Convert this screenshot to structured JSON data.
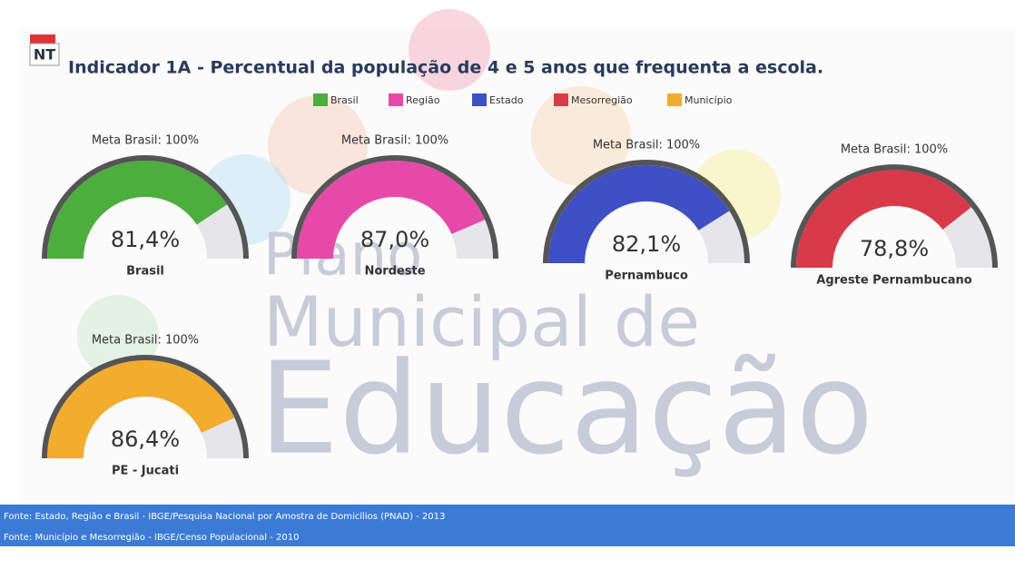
{
  "header": {
    "badge": "NT",
    "title": "Indicador 1A - Percentual da população de 4 e 5 anos que frequenta a escola."
  },
  "watermark": [
    "Plano",
    "Municipal de",
    "Educação"
  ],
  "chart_data": [
    {
      "type": "gauge",
      "title": "Meta Brasil: 100%",
      "categories": [
        "Brasil"
      ],
      "ylim": [
        0,
        100
      ],
      "series": [
        {
          "name": "Brasil",
          "color": "#4cae3c",
          "values": [
            81.4
          ],
          "value_labels": [
            "81,4%"
          ]
        }
      ]
    },
    {
      "type": "gauge",
      "title": "Meta Brasil: 100%",
      "categories": [
        "Nordeste"
      ],
      "ylim": [
        0,
        100
      ],
      "series": [
        {
          "name": "Região",
          "color": "#e64aa8",
          "values": [
            87.0
          ],
          "value_labels": [
            "87,0%"
          ]
        }
      ]
    },
    {
      "type": "gauge",
      "title": "Meta Brasil: 100%",
      "categories": [
        "Pernambuco"
      ],
      "ylim": [
        0,
        100
      ],
      "series": [
        {
          "name": "Estado",
          "color": "#3f4fc4",
          "values": [
            82.1
          ],
          "value_labels": [
            "82,1%"
          ]
        }
      ]
    },
    {
      "type": "gauge",
      "title": "Meta Brasil: 100%",
      "categories": [
        "Agreste Pernambucano"
      ],
      "ylim": [
        0,
        100
      ],
      "series": [
        {
          "name": "Mesorregião",
          "color": "#d93a4a",
          "values": [
            78.8
          ],
          "value_labels": [
            "78,8%"
          ]
        }
      ]
    },
    {
      "type": "gauge",
      "title": "Meta Brasil: 100%",
      "categories": [
        "PE - Jucati"
      ],
      "ylim": [
        0,
        100
      ],
      "series": [
        {
          "name": "Município",
          "color": "#f2ac2e",
          "values": [
            86.4
          ],
          "value_labels": [
            "86,4%"
          ]
        }
      ]
    }
  ],
  "footer": [
    "Fonte: Estado, Região e Brasil - IBGE/Pesquisa Nacional por Amostra de Domicílios (PNAD) - 2013",
    "Fonte: Município e Mesorregião - IBGE/Censo Populacional - 2010"
  ]
}
